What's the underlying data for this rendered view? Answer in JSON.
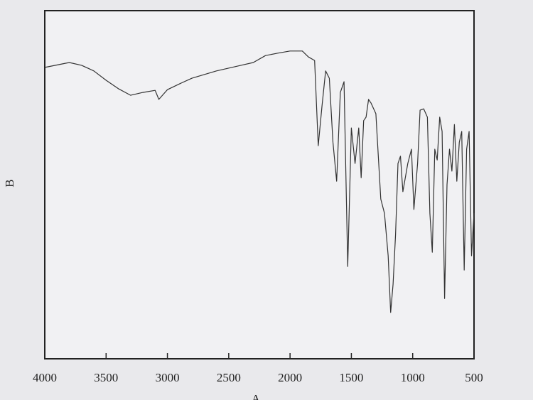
{
  "chart_data": {
    "type": "line",
    "x_label": "A",
    "y_label": "B",
    "x": [
      4000,
      3800,
      3700,
      3600,
      3500,
      3400,
      3300,
      3200,
      3100,
      3070,
      3000,
      2900,
      2800,
      2600,
      2400,
      2300,
      2200,
      2100,
      2000,
      1900,
      1850,
      1800,
      1770,
      1740,
      1710,
      1680,
      1650,
      1620,
      1590,
      1560,
      1530,
      1500,
      1470,
      1440,
      1420,
      1400,
      1380,
      1360,
      1340,
      1300,
      1260,
      1230,
      1200,
      1180,
      1160,
      1140,
      1120,
      1100,
      1080,
      1040,
      1010,
      990,
      960,
      940,
      910,
      880,
      860,
      840,
      820,
      800,
      780,
      760,
      740,
      720,
      700,
      680,
      660,
      640,
      620,
      600,
      580,
      560,
      540,
      520,
      500
    ],
    "series": [
      {
        "color": "#333333",
        "values": [
          83.7,
          85.1,
          84.3,
          82.7,
          80,
          77.6,
          75.7,
          76.5,
          77.1,
          74.5,
          77.3,
          79,
          80.6,
          82.7,
          84.3,
          85.1,
          87.1,
          87.8,
          88.4,
          88.4,
          86.7,
          85.7,
          61.2,
          72.4,
          82.7,
          80.6,
          62.2,
          51,
          76.5,
          79.6,
          26.5,
          66.3,
          56.1,
          66.3,
          52,
          68.4,
          69.4,
          74.5,
          73.5,
          70.4,
          45.9,
          41.8,
          29.6,
          13.3,
          21.4,
          35.7,
          56.1,
          58.2,
          48,
          56.1,
          60.2,
          42.9,
          56.1,
          71.4,
          71.8,
          69.4,
          41.8,
          30.6,
          60.2,
          57.1,
          69.4,
          65.3,
          17.3,
          50,
          60.2,
          53.9,
          67.3,
          51,
          62.2,
          65.3,
          25.5,
          60.2,
          65.3,
          29.6,
          41.8
        ]
      }
    ],
    "xlim": [
      4000,
      500
    ],
    "xticks": [
      4000,
      3500,
      3000,
      2500,
      2000,
      1500,
      1000,
      500
    ],
    "ylim": [
      0,
      100
    ]
  }
}
